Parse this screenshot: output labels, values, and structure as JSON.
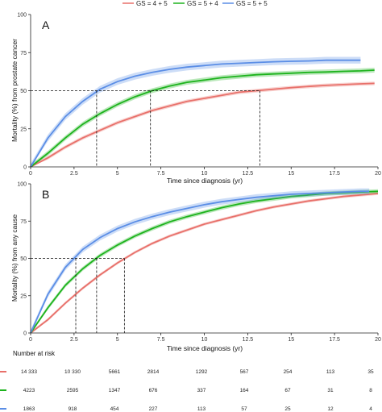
{
  "legend": [
    {
      "label": "GS = 4 + 5",
      "color": "#e8706a"
    },
    {
      "label": "GS = 5 + 4",
      "color": "#1db31d"
    },
    {
      "label": "GS = 5 + 5",
      "color": "#5b8ee6"
    }
  ],
  "chart_data": [
    {
      "type": "line",
      "panel_label": "A",
      "xlabel": "Time since diagnosis (yr)",
      "ylabel": "Mortality (%) from prostate cancer",
      "xlim": [
        0,
        20
      ],
      "ylim": [
        0,
        100
      ],
      "xticks": [
        0,
        2.5,
        5,
        7.5,
        10,
        12.5,
        15,
        17.5,
        20
      ],
      "xtick_labels": [
        "0",
        "2.5",
        "5",
        "7.5",
        "10",
        "12.5",
        "15",
        "17.5",
        "20"
      ],
      "yticks": [
        0,
        25,
        50,
        75,
        100
      ],
      "ytick_labels": [
        "0",
        "25",
        "50",
        "75",
        "100"
      ],
      "grid": false,
      "median_times": [
        13.2,
        6.9,
        3.8
      ],
      "series": [
        {
          "name": "GS = 4 + 5",
          "color": "#e8706a",
          "band": 1.2,
          "x": [
            0,
            1,
            2,
            3,
            4,
            5,
            6,
            7,
            8,
            9,
            10,
            11,
            12,
            13,
            14,
            15,
            16,
            17,
            18,
            19,
            19.8
          ],
          "y": [
            0,
            6,
            13,
            19,
            24,
            29,
            33,
            37,
            40,
            43,
            45,
            47,
            49,
            50,
            51,
            52,
            52.8,
            53.5,
            54,
            54.5,
            54.8
          ]
        },
        {
          "name": "GS = 5 + 4",
          "color": "#1db31d",
          "band": 1.6,
          "x": [
            0,
            1,
            2,
            3,
            4,
            5,
            6,
            7,
            8,
            9,
            10,
            11,
            12,
            13,
            14,
            15,
            16,
            17,
            18,
            19,
            19.8
          ],
          "y": [
            0,
            9,
            19,
            28,
            35,
            41,
            46,
            50,
            53,
            55.5,
            57,
            58.5,
            59.5,
            60.5,
            61,
            61.5,
            62,
            62.3,
            62.7,
            63,
            63.5
          ]
        },
        {
          "name": "GS = 5 + 5",
          "color": "#5b8ee6",
          "band": 2.2,
          "x": [
            0,
            1,
            2,
            3,
            4,
            5,
            6,
            7,
            8,
            9,
            10,
            11,
            12,
            13,
            14,
            15,
            16,
            17,
            18,
            19
          ],
          "y": [
            0,
            19,
            33,
            43,
            51,
            56,
            59.5,
            62,
            64,
            65.5,
            66.5,
            67.5,
            68,
            68.5,
            69,
            69.3,
            69.5,
            70,
            70,
            70
          ]
        }
      ]
    },
    {
      "type": "line",
      "panel_label": "B",
      "xlabel": "Time since diagnosis (yr)",
      "ylabel": "Mortality (%) from any cause",
      "xlim": [
        0,
        20
      ],
      "ylim": [
        0,
        100
      ],
      "xticks": [
        0,
        2.5,
        5,
        7.5,
        10,
        12.5,
        15,
        17.5,
        20
      ],
      "xtick_labels": [
        "0",
        "2.5",
        "5",
        "7.5",
        "10",
        "12.5",
        "15",
        "17.5",
        "20"
      ],
      "yticks": [
        0,
        25,
        50,
        75,
        100
      ],
      "ytick_labels": [
        "0",
        "25",
        "50",
        "75",
        "100"
      ],
      "grid": false,
      "median_times": [
        5.4,
        3.8,
        2.6
      ],
      "series": [
        {
          "name": "GS = 4 + 5",
          "color": "#e8706a",
          "band": 1.0,
          "x": [
            0,
            1,
            2,
            3,
            4,
            5,
            6,
            7,
            8,
            9,
            10,
            11,
            12,
            13,
            14,
            15,
            16,
            17,
            18,
            19,
            20
          ],
          "y": [
            0,
            9,
            20,
            30,
            39,
            47,
            54,
            60,
            65,
            69,
            73,
            76,
            79,
            82,
            84.5,
            86.5,
            88.5,
            90,
            91.5,
            92.5,
            93.5
          ]
        },
        {
          "name": "GS = 5 + 4",
          "color": "#1db31d",
          "band": 1.4,
          "x": [
            0,
            1,
            2,
            3,
            4,
            5,
            6,
            7,
            8,
            9,
            10,
            11,
            12,
            13,
            14,
            15,
            16,
            17,
            18,
            19,
            20
          ],
          "y": [
            0,
            17,
            32,
            43,
            52,
            59,
            65,
            70,
            74.5,
            78,
            81,
            84,
            86.5,
            88.5,
            90,
            91.5,
            92.5,
            93.5,
            94,
            94.5,
            95
          ]
        },
        {
          "name": "GS = 5 + 5",
          "color": "#5b8ee6",
          "band": 2.0,
          "x": [
            0,
            1,
            2,
            3,
            4,
            5,
            6,
            7,
            8,
            9,
            10,
            11,
            12,
            13,
            14,
            15,
            16,
            17,
            18,
            19,
            19.5
          ],
          "y": [
            0,
            26,
            44,
            56,
            64,
            70,
            74.5,
            78,
            81,
            83.5,
            86,
            88,
            89.5,
            91,
            92,
            93,
            93.5,
            94,
            94.5,
            95,
            95
          ]
        }
      ]
    }
  ],
  "risk_table": {
    "title": "Number at risk",
    "rows": [
      {
        "color": "#e8706a",
        "values": [
          "14 333",
          "10 330",
          "5661",
          "2814",
          "1292",
          "567",
          "254",
          "113",
          "35"
        ]
      },
      {
        "color": "#1db31d",
        "values": [
          "4223",
          "2595",
          "1347",
          "676",
          "337",
          "164",
          "67",
          "31",
          "8"
        ]
      },
      {
        "color": "#5b8ee6",
        "values": [
          "1863",
          "918",
          "454",
          "227",
          "113",
          "57",
          "25",
          "12",
          "4"
        ]
      }
    ]
  }
}
